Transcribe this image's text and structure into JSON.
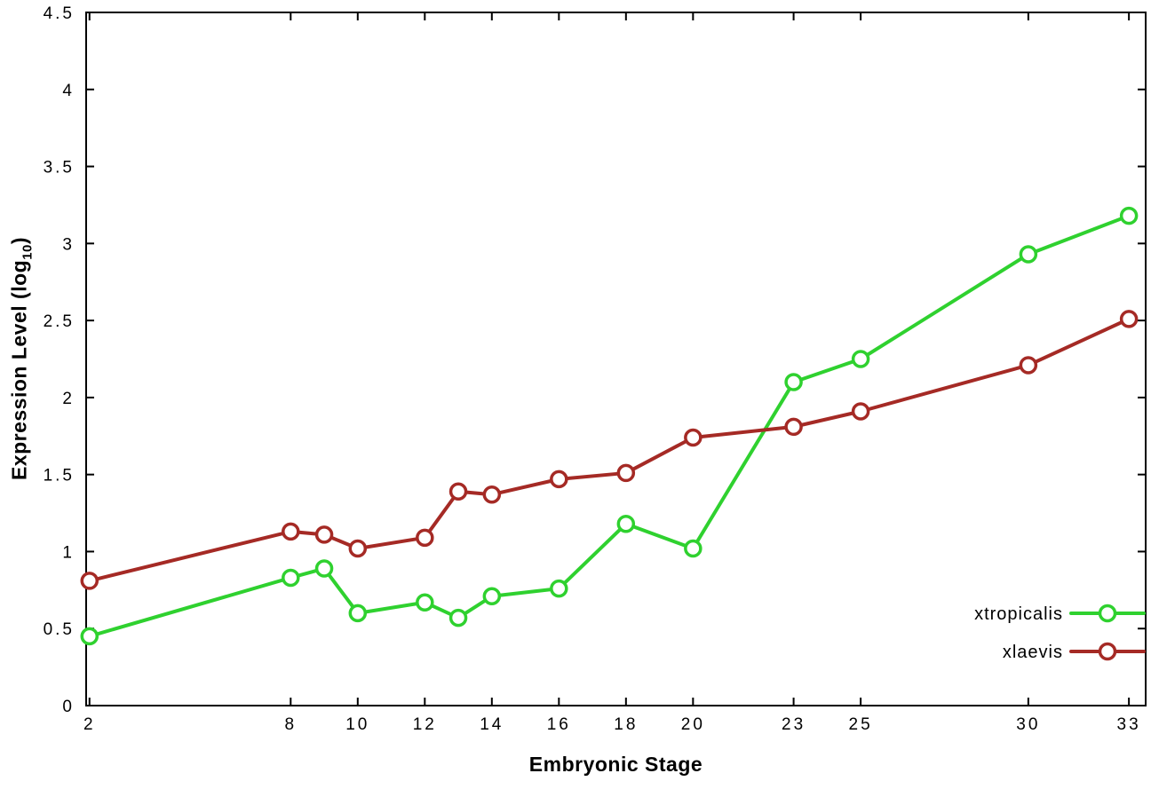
{
  "chart_data": {
    "type": "line",
    "xlabel": "Embryonic Stage",
    "ylabel": "Expression Level (log10)",
    "ylabel_parts": {
      "prefix": "Expression Level (log",
      "sub": "10",
      "suffix": ")"
    },
    "x": [
      2,
      8,
      9,
      10,
      12,
      13,
      14,
      16,
      18,
      20,
      23,
      25,
      30,
      33
    ],
    "xticks": [
      2,
      8,
      10,
      12,
      14,
      16,
      18,
      20,
      23,
      25,
      30,
      33
    ],
    "xtick_labels": [
      "2",
      "8",
      "10",
      "12",
      "14",
      "16",
      "18",
      "20",
      "23",
      "25",
      "30",
      "33"
    ],
    "yticks": [
      0,
      0.5,
      1,
      1.5,
      2,
      2.5,
      3,
      3.5,
      4,
      4.5
    ],
    "ytick_labels": [
      "0",
      "0.5",
      "1",
      "1.5",
      "2",
      "2.5",
      "3",
      "3.5",
      "4",
      "4.5"
    ],
    "xlim": [
      1.9,
      33.5
    ],
    "ylim": [
      0,
      4.5
    ],
    "grid": false,
    "legend_position": "inside bottom right",
    "marker": "open-circle",
    "series": [
      {
        "name": "xtropicalis",
        "color": "#2fd12f",
        "values": [
          0.45,
          0.83,
          0.89,
          0.6,
          0.67,
          0.57,
          0.71,
          0.76,
          1.18,
          1.02,
          2.1,
          2.25,
          2.93,
          3.18
        ]
      },
      {
        "name": "xlaevis",
        "color": "#a52a25",
        "values": [
          0.81,
          1.13,
          1.11,
          1.02,
          1.09,
          1.39,
          1.37,
          1.47,
          1.51,
          1.74,
          1.81,
          1.91,
          2.21,
          2.51
        ]
      }
    ],
    "colors": {
      "axis": "#000000",
      "background": "#ffffff"
    }
  }
}
